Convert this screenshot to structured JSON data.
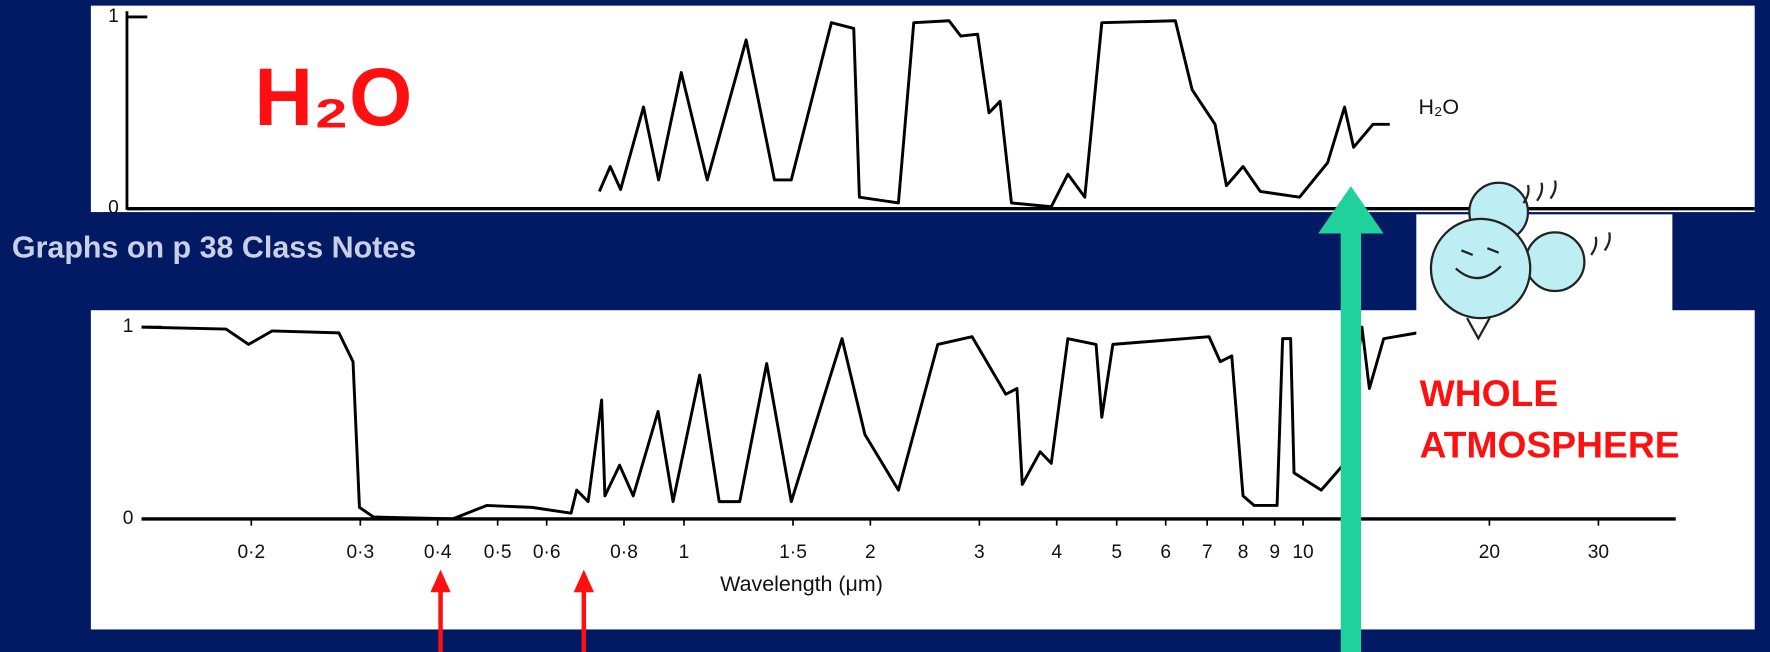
{
  "caption": "Graphs on p 38 Class Notes",
  "chart_data": [
    {
      "type": "line",
      "title": "H₂O",
      "xscale": "log",
      "x": [
        0.73,
        0.76,
        0.79,
        0.86,
        0.91,
        0.99,
        1.09,
        1.26,
        1.4,
        1.49,
        1.73,
        1.88,
        1.92,
        2.22,
        2.35,
        2.68,
        2.8,
        2.98,
        3.11,
        3.24,
        3.38,
        3.92,
        4.17,
        4.44,
        4.73,
        6.22,
        6.62,
        7.21,
        7.52,
        8.0,
        8.53,
        9.87,
        10.96,
        11.67,
        12.07,
        12.97,
        13.81
      ],
      "series": [
        {
          "name": "H₂O",
          "color": "#000000",
          "values": [
            0.09,
            0.22,
            0.1,
            0.53,
            0.15,
            0.71,
            0.15,
            0.88,
            0.15,
            0.15,
            0.97,
            0.94,
            0.06,
            0.03,
            0.97,
            0.98,
            0.9,
            0.91,
            0.5,
            0.56,
            0.03,
            0.01,
            0.18,
            0.06,
            0.97,
            0.98,
            0.62,
            0.44,
            0.12,
            0.22,
            0.09,
            0.06,
            0.24,
            0.53,
            0.32,
            0.44,
            0.44
          ]
        }
      ],
      "xlim": [
        0.133,
        40
      ],
      "ylim": [
        0,
        1
      ],
      "yticks": [
        0,
        1
      ]
    },
    {
      "type": "line",
      "xscale": "log",
      "annotations": [
        "WHOLE",
        "ATMOSPHERE"
      ],
      "x_label": "Wavelength (μm)",
      "x": [
        0.133,
        0.182,
        0.198,
        0.216,
        0.277,
        0.292,
        0.299,
        0.315,
        0.423,
        0.48,
        0.568,
        0.657,
        0.671,
        0.7,
        0.736,
        0.745,
        0.787,
        0.828,
        0.908,
        0.96,
        1.06,
        1.14,
        1.23,
        1.36,
        1.49,
        1.8,
        1.96,
        2.22,
        2.57,
        2.92,
        3.31,
        3.45,
        3.52,
        3.76,
        3.92,
        4.17,
        4.63,
        4.73,
        4.93,
        7.05,
        7.35,
        7.67,
        8.0,
        8.34,
        9.08,
        9.27,
        9.55,
        9.67,
        10.7,
        11.67,
        12.45,
        12.8,
        13.5,
        15.3
      ],
      "values": [
        1,
        0.99,
        0.91,
        0.98,
        0.97,
        0.82,
        0.06,
        0.01,
        0,
        0.07,
        0.06,
        0.03,
        0.15,
        0.09,
        0.62,
        0.12,
        0.28,
        0.12,
        0.56,
        0.09,
        0.75,
        0.09,
        0.09,
        0.81,
        0.09,
        0.94,
        0.44,
        0.15,
        0.91,
        0.95,
        0.65,
        0.68,
        0.18,
        0.35,
        0.29,
        0.94,
        0.91,
        0.53,
        0.91,
        0.95,
        0.82,
        0.85,
        0.12,
        0.07,
        0.07,
        0.94,
        0.94,
        0.24,
        0.15,
        0.29,
        1,
        0.68,
        0.94,
        0.97
      ],
      "color": "#000000",
      "xlim": [
        0.133,
        40
      ],
      "ylim": [
        0,
        1
      ],
      "yticks": [
        0,
        1
      ],
      "xticks": [
        {
          "value": 0.2,
          "label": "0·2"
        },
        {
          "value": 0.3,
          "label": "0·3"
        },
        {
          "value": 0.4,
          "label": "0·4"
        },
        {
          "value": 0.5,
          "label": "0·5"
        },
        {
          "value": 0.6,
          "label": "0·6"
        },
        {
          "value": 0.8,
          "label": "0·8"
        },
        1,
        {
          "value": 1.5,
          "label": "1·5"
        },
        2,
        3,
        4,
        5,
        6,
        7,
        8,
        9,
        10,
        20,
        30
      ]
    }
  ]
}
